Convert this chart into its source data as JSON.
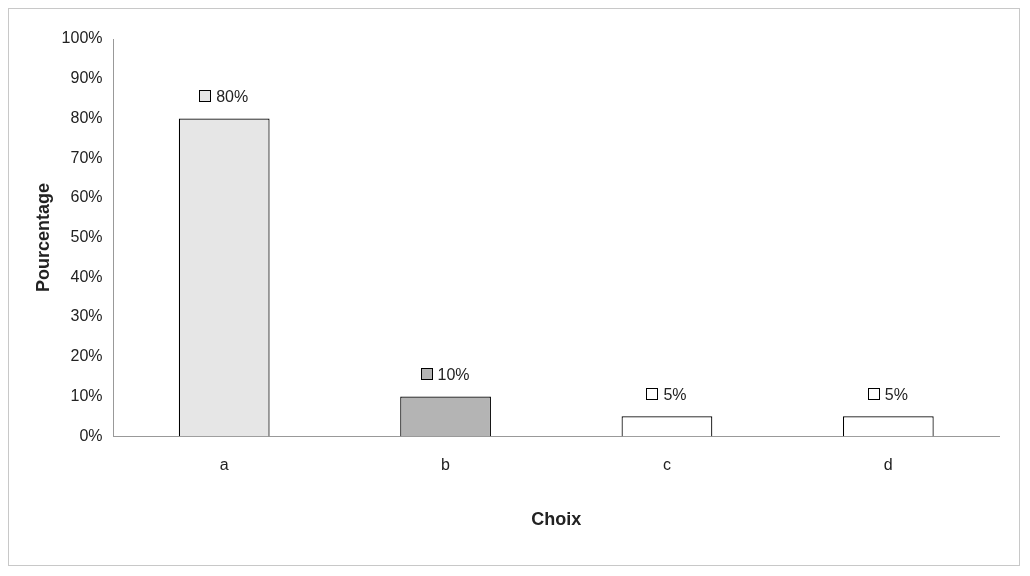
{
  "chart_data": {
    "type": "bar",
    "xlabel": "Choix",
    "ylabel": "Pourcentage",
    "categories": [
      "a",
      "b",
      "c",
      "d"
    ],
    "values": [
      80,
      10,
      5,
      5
    ],
    "colors": [
      "#e6e6e6",
      "#b4b4b4",
      "#ffffff",
      "#ffffff"
    ],
    "value_labels": [
      "80%",
      "10%",
      "5%",
      "5%"
    ],
    "ylim": [
      0,
      100
    ],
    "yticks": [
      {
        "value": 0,
        "label": "0%"
      },
      {
        "value": 10,
        "label": "10%"
      },
      {
        "value": 20,
        "label": "20%"
      },
      {
        "value": 30,
        "label": "30%"
      },
      {
        "value": 40,
        "label": "40%"
      },
      {
        "value": 50,
        "label": "50%"
      },
      {
        "value": 60,
        "label": "60%"
      },
      {
        "value": 70,
        "label": "70%"
      },
      {
        "value": 80,
        "label": "80%"
      },
      {
        "value": 90,
        "label": "90%"
      },
      {
        "value": 100,
        "label": "100%"
      }
    ],
    "grid": false,
    "legend": false
  }
}
